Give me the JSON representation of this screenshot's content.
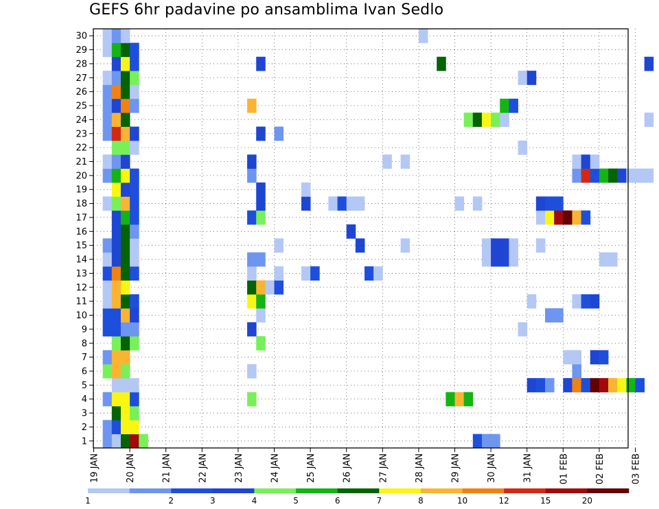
{
  "chart_data": {
    "type": "heatmap",
    "title": "GEFS 6hr padavine po ansamblima Ivan Sedlo",
    "x_labels": [
      "19 JAN",
      "20 JAN",
      "21 JAN",
      "22 JAN",
      "23 JAN",
      "24 JAN",
      "25 JAN",
      "26 JAN",
      "27 JAN",
      "28 JAN",
      "29 JAN",
      "30 JAN",
      "31 JAN",
      "01 FEB",
      "02 FEB",
      "03 FEB"
    ],
    "y_labels": [
      "1",
      "2",
      "3",
      "4",
      "5",
      "6",
      "7",
      "8",
      "9",
      "10",
      "11",
      "12",
      "13",
      "14",
      "15",
      "16",
      "17",
      "18",
      "19",
      "20",
      "21",
      "22",
      "23",
      "24",
      "25",
      "26",
      "27",
      "28",
      "29",
      "30"
    ],
    "time_steps_per_day": 4,
    "grid": true,
    "colorbar": {
      "labels": [
        "1",
        "2",
        "3",
        "4",
        "5",
        "6",
        "7",
        "8",
        "10",
        "12",
        "15",
        "20"
      ],
      "colors": [
        "#b4c8f5",
        "#6e96f0",
        "#1e4fdc",
        "#1e46d2",
        "#78f05a",
        "#14b414",
        "#046404",
        "#faf614",
        "#fab432",
        "#f08214",
        "#d22814",
        "#a00a0a",
        "#640000"
      ]
    },
    "cells": [
      [
        1,
        1,
        1
      ],
      [
        1,
        2,
        0
      ],
      [
        1,
        3,
        6
      ],
      [
        1,
        4,
        11
      ],
      [
        1,
        5,
        4
      ],
      [
        1,
        42,
        2
      ],
      [
        1,
        43,
        1
      ],
      [
        1,
        44,
        1
      ],
      [
        2,
        1,
        1
      ],
      [
        2,
        2,
        2
      ],
      [
        2,
        3,
        7
      ],
      [
        2,
        4,
        7
      ],
      [
        3,
        2,
        6
      ],
      [
        3,
        3,
        7
      ],
      [
        3,
        4,
        4
      ],
      [
        4,
        1,
        1
      ],
      [
        4,
        2,
        7
      ],
      [
        4,
        3,
        7
      ],
      [
        4,
        4,
        2
      ],
      [
        4,
        17,
        4
      ],
      [
        4,
        39,
        5
      ],
      [
        4,
        40,
        8
      ],
      [
        4,
        41,
        5
      ],
      [
        5,
        2,
        0
      ],
      [
        5,
        3,
        0
      ],
      [
        5,
        4,
        0
      ],
      [
        5,
        48,
        3
      ],
      [
        5,
        49,
        2
      ],
      [
        5,
        50,
        1
      ],
      [
        5,
        52,
        3
      ],
      [
        5,
        53,
        9
      ],
      [
        5,
        54,
        2
      ],
      [
        5,
        55,
        12
      ],
      [
        5,
        56,
        11
      ],
      [
        5,
        57,
        8
      ],
      [
        5,
        58,
        7
      ],
      [
        5,
        59,
        5
      ],
      [
        5,
        60,
        2
      ],
      [
        6,
        1,
        4
      ],
      [
        6,
        2,
        8
      ],
      [
        6,
        3,
        4
      ],
      [
        6,
        17,
        0
      ],
      [
        6,
        53,
        1
      ],
      [
        7,
        1,
        1
      ],
      [
        7,
        2,
        8
      ],
      [
        7,
        3,
        8
      ],
      [
        7,
        52,
        0
      ],
      [
        7,
        53,
        0
      ],
      [
        7,
        55,
        3
      ],
      [
        7,
        56,
        2
      ],
      [
        8,
        2,
        4
      ],
      [
        8,
        3,
        6
      ],
      [
        8,
        4,
        4
      ],
      [
        8,
        18,
        4
      ],
      [
        9,
        1,
        2
      ],
      [
        9,
        2,
        2
      ],
      [
        9,
        3,
        1
      ],
      [
        9,
        4,
        1
      ],
      [
        9,
        17,
        3
      ],
      [
        9,
        47,
        0
      ],
      [
        10,
        1,
        2
      ],
      [
        10,
        2,
        2
      ],
      [
        10,
        3,
        8
      ],
      [
        10,
        4,
        3
      ],
      [
        10,
        18,
        0
      ],
      [
        10,
        50,
        1
      ],
      [
        10,
        51,
        1
      ],
      [
        11,
        1,
        0
      ],
      [
        11,
        2,
        8
      ],
      [
        11,
        3,
        6
      ],
      [
        11,
        4,
        2
      ],
      [
        11,
        17,
        7
      ],
      [
        11,
        18,
        5
      ],
      [
        11,
        48,
        0
      ],
      [
        11,
        53,
        0
      ],
      [
        11,
        54,
        2
      ],
      [
        11,
        55,
        3
      ],
      [
        12,
        1,
        0
      ],
      [
        12,
        2,
        8
      ],
      [
        12,
        3,
        7
      ],
      [
        12,
        17,
        6
      ],
      [
        12,
        18,
        8
      ],
      [
        12,
        19,
        0
      ],
      [
        12,
        20,
        2
      ],
      [
        13,
        1,
        2
      ],
      [
        13,
        2,
        9
      ],
      [
        13,
        3,
        6
      ],
      [
        13,
        4,
        2
      ],
      [
        13,
        17,
        0
      ],
      [
        13,
        20,
        0
      ],
      [
        13,
        23,
        0
      ],
      [
        13,
        24,
        2
      ],
      [
        13,
        30,
        2
      ],
      [
        13,
        31,
        0
      ],
      [
        14,
        1,
        0
      ],
      [
        14,
        2,
        3
      ],
      [
        14,
        3,
        6
      ],
      [
        14,
        4,
        0
      ],
      [
        14,
        17,
        1
      ],
      [
        14,
        18,
        1
      ],
      [
        14,
        43,
        0
      ],
      [
        14,
        44,
        3
      ],
      [
        14,
        45,
        3
      ],
      [
        14,
        46,
        0
      ],
      [
        14,
        56,
        0
      ],
      [
        14,
        57,
        0
      ],
      [
        15,
        1,
        1
      ],
      [
        15,
        2,
        3
      ],
      [
        15,
        3,
        6
      ],
      [
        15,
        4,
        0
      ],
      [
        15,
        20,
        0
      ],
      [
        15,
        29,
        3
      ],
      [
        15,
        34,
        0
      ],
      [
        15,
        43,
        0
      ],
      [
        15,
        44,
        3
      ],
      [
        15,
        45,
        3
      ],
      [
        15,
        46,
        0
      ],
      [
        15,
        49,
        0
      ],
      [
        16,
        2,
        3
      ],
      [
        16,
        3,
        6
      ],
      [
        16,
        4,
        1
      ],
      [
        16,
        28,
        3
      ],
      [
        17,
        2,
        3
      ],
      [
        17,
        3,
        5
      ],
      [
        17,
        4,
        2
      ],
      [
        17,
        17,
        2
      ],
      [
        17,
        18,
        4
      ],
      [
        17,
        49,
        0
      ],
      [
        17,
        50,
        7
      ],
      [
        17,
        51,
        11
      ],
      [
        17,
        52,
        12
      ],
      [
        17,
        53,
        8
      ],
      [
        17,
        54,
        2
      ],
      [
        18,
        1,
        0
      ],
      [
        18,
        2,
        4
      ],
      [
        18,
        3,
        8
      ],
      [
        18,
        4,
        2
      ],
      [
        18,
        18,
        3
      ],
      [
        18,
        23,
        3
      ],
      [
        18,
        26,
        0
      ],
      [
        18,
        27,
        2
      ],
      [
        18,
        28,
        0
      ],
      [
        18,
        29,
        0
      ],
      [
        18,
        40,
        0
      ],
      [
        18,
        42,
        0
      ],
      [
        18,
        49,
        3
      ],
      [
        18,
        50,
        2
      ],
      [
        18,
        51,
        2
      ],
      [
        19,
        2,
        7
      ],
      [
        19,
        3,
        3
      ],
      [
        19,
        4,
        2
      ],
      [
        19,
        18,
        3
      ],
      [
        19,
        23,
        0
      ],
      [
        20,
        1,
        1
      ],
      [
        20,
        2,
        5
      ],
      [
        20,
        3,
        7
      ],
      [
        20,
        4,
        2
      ],
      [
        20,
        17,
        1
      ],
      [
        20,
        53,
        1
      ],
      [
        20,
        54,
        10
      ],
      [
        20,
        55,
        2
      ],
      [
        20,
        56,
        5
      ],
      [
        20,
        57,
        6
      ],
      [
        20,
        58,
        3
      ],
      [
        20,
        59,
        0
      ],
      [
        20,
        60,
        0
      ],
      [
        20,
        61,
        0
      ],
      [
        21,
        1,
        0
      ],
      [
        21,
        2,
        1
      ],
      [
        21,
        3,
        3
      ],
      [
        21,
        17,
        3
      ],
      [
        21,
        32,
        0
      ],
      [
        21,
        34,
        0
      ],
      [
        21,
        53,
        0
      ],
      [
        21,
        54,
        3
      ],
      [
        21,
        55,
        0
      ],
      [
        22,
        2,
        4
      ],
      [
        22,
        3,
        4
      ],
      [
        22,
        4,
        0
      ],
      [
        22,
        47,
        0
      ],
      [
        23,
        1,
        1
      ],
      [
        23,
        2,
        10
      ],
      [
        23,
        3,
        8
      ],
      [
        23,
        4,
        3
      ],
      [
        23,
        18,
        3
      ],
      [
        23,
        20,
        1
      ],
      [
        24,
        1,
        1
      ],
      [
        24,
        2,
        8
      ],
      [
        24,
        3,
        6
      ],
      [
        24,
        41,
        4
      ],
      [
        24,
        42,
        6
      ],
      [
        24,
        43,
        7
      ],
      [
        24,
        44,
        4
      ],
      [
        24,
        45,
        0
      ],
      [
        24,
        61,
        0
      ],
      [
        25,
        1,
        1
      ],
      [
        25,
        2,
        3
      ],
      [
        25,
        3,
        9
      ],
      [
        25,
        4,
        1
      ],
      [
        25,
        17,
        8
      ],
      [
        25,
        45,
        5
      ],
      [
        25,
        46,
        2
      ],
      [
        26,
        1,
        1
      ],
      [
        26,
        2,
        9
      ],
      [
        26,
        3,
        6
      ],
      [
        26,
        4,
        0
      ],
      [
        27,
        1,
        0
      ],
      [
        27,
        2,
        1
      ],
      [
        27,
        3,
        6
      ],
      [
        27,
        4,
        4
      ],
      [
        27,
        47,
        0
      ],
      [
        27,
        48,
        3
      ],
      [
        28,
        2,
        3
      ],
      [
        28,
        3,
        7
      ],
      [
        28,
        4,
        2
      ],
      [
        28,
        18,
        3
      ],
      [
        28,
        38,
        6
      ],
      [
        28,
        61,
        3
      ],
      [
        29,
        1,
        0
      ],
      [
        29,
        2,
        5
      ],
      [
        29,
        3,
        6
      ],
      [
        29,
        4,
        2
      ],
      [
        30,
        1,
        0
      ],
      [
        30,
        2,
        1
      ],
      [
        30,
        3,
        0
      ],
      [
        30,
        36,
        0
      ]
    ]
  }
}
